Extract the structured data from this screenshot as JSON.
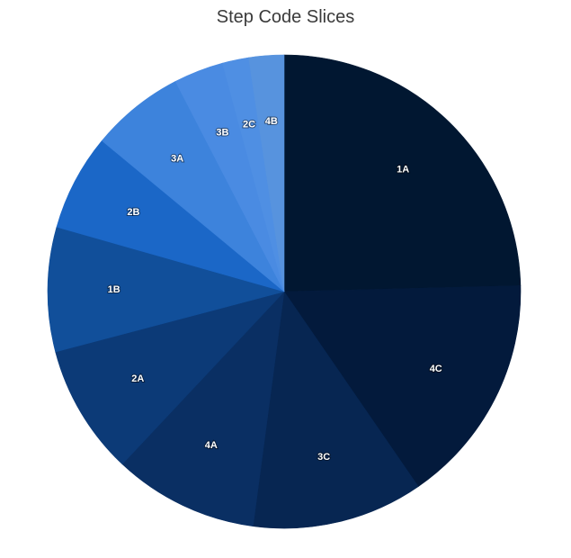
{
  "chart_data": {
    "type": "pie",
    "title": "Step Code Slices",
    "start_angle_deg": 0,
    "direction": "clockwise",
    "slices": [
      {
        "label": "1A",
        "value": 24.6,
        "color": "#011731"
      },
      {
        "label": "4C",
        "value": 15.8,
        "color": "#031a3c"
      },
      {
        "label": "3C",
        "value": 11.7,
        "color": "#072652"
      },
      {
        "label": "4A",
        "value": 9.9,
        "color": "#0a2f63"
      },
      {
        "label": "2A",
        "value": 8.9,
        "color": "#0c3a77"
      },
      {
        "label": "1B",
        "value": 8.5,
        "color": "#114f9a"
      },
      {
        "label": "2B",
        "value": 6.6,
        "color": "#1b67c7"
      },
      {
        "label": "3A",
        "value": 6.4,
        "color": "#3d83dc"
      },
      {
        "label": "3B",
        "value": 3.4,
        "color": "#4a8be2"
      },
      {
        "label": "2C",
        "value": 1.8,
        "color": "#4f8fe3"
      },
      {
        "label": "4B",
        "value": 2.4,
        "color": "#5793de"
      }
    ]
  }
}
